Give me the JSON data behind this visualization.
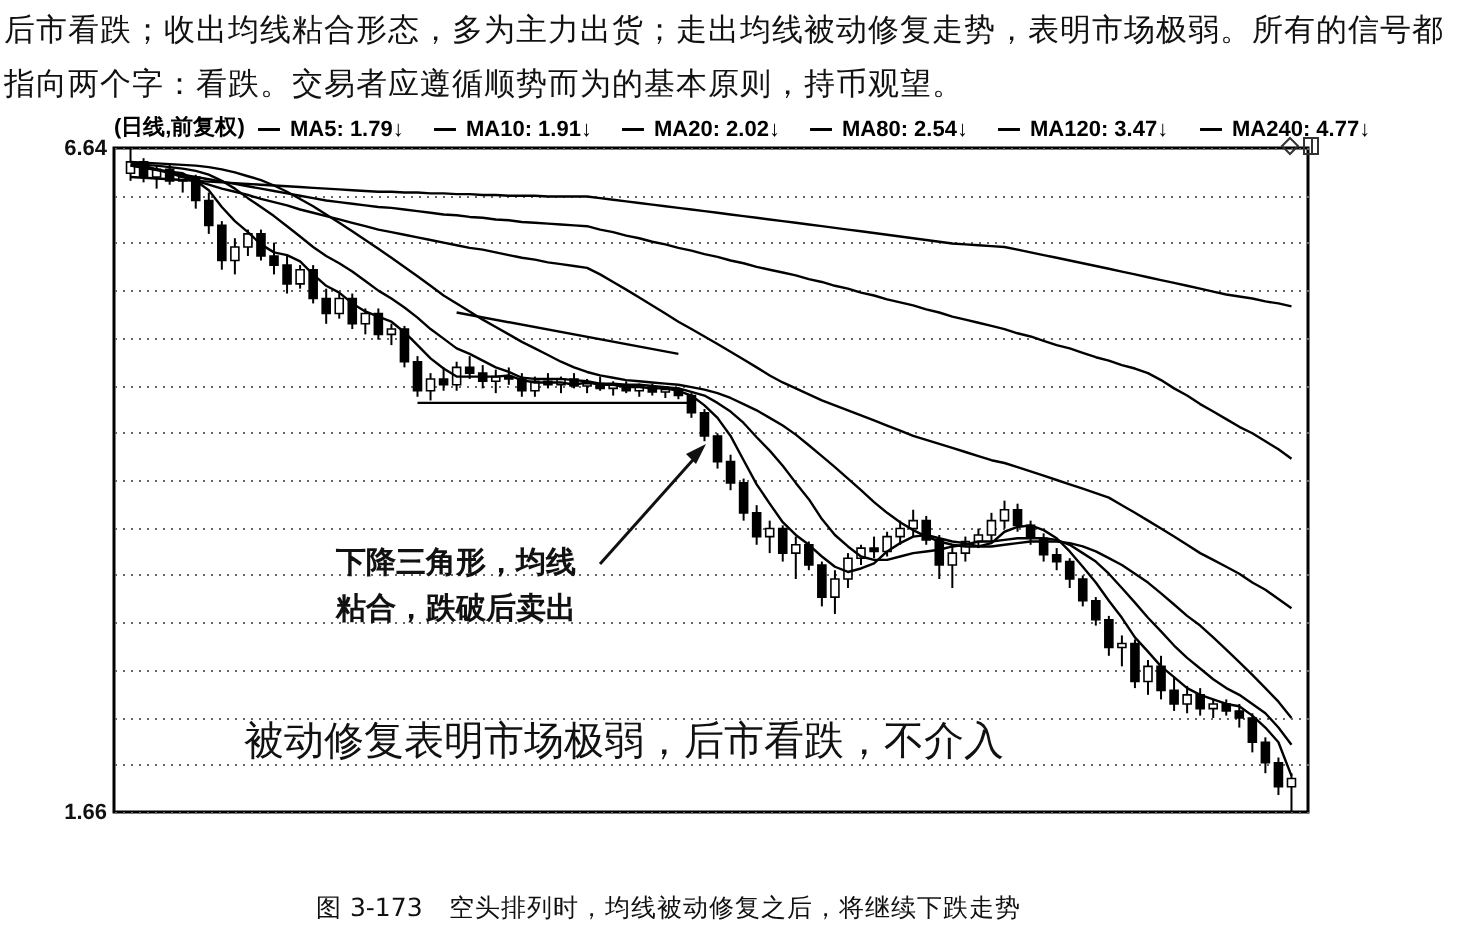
{
  "chart_data": {
    "type": "candlestick",
    "subtitle": "后市看跌；收出均线粘合形态，多为主力出货；走出均线被动修复走势，表明市场极弱。所有的信号都指向两个字：看跌。交易者应遵循顺势而为的基本原则，持币观望。",
    "annotations": [
      "下降三角形，均线粘合，跌破后卖出",
      "被动修复表明市场极弱，后市看跌，不介入",
      "图 3-173　空头排列时，均线被动修复之后，将继续下跌走势"
    ],
    "legend_title": "(日线,前复权)",
    "legend": "top",
    "log": true,
    "ylim": [
      1.66,
      6.64
    ],
    "yticks": [
      1.66,
      6.64
    ],
    "grid": "y",
    "tick_labels": "y",
    "categories": [
      null,
      null,
      null,
      null,
      null,
      null,
      null,
      null,
      null,
      null,
      null,
      null,
      null,
      null,
      null,
      null,
      null,
      null,
      null,
      null,
      null,
      null,
      null,
      null,
      null,
      null,
      null,
      null,
      null,
      null,
      null,
      null,
      null,
      null,
      null,
      null,
      null,
      null,
      null,
      null,
      null,
      null,
      null,
      null,
      null,
      null,
      null,
      null,
      null,
      null,
      null,
      null,
      null,
      null,
      null,
      null,
      null,
      null,
      null,
      null,
      null,
      null,
      null,
      null,
      null,
      null,
      null,
      null,
      null,
      null,
      null,
      null,
      null,
      null,
      null,
      null,
      null,
      null,
      null,
      null,
      null,
      null,
      null,
      null,
      null,
      null,
      null,
      null,
      null,
      null
    ],
    "ohlc": [
      [
        6.3,
        6.64,
        6.2,
        6.45
      ],
      [
        6.45,
        6.5,
        6.18,
        6.25
      ],
      [
        6.25,
        6.4,
        6.1,
        6.35
      ],
      [
        6.35,
        6.42,
        6.15,
        6.2
      ],
      [
        6.2,
        6.3,
        6.05,
        6.25
      ],
      [
        6.25,
        6.28,
        5.85,
        5.95
      ],
      [
        5.95,
        6.05,
        5.55,
        5.65
      ],
      [
        5.65,
        5.7,
        5.15,
        5.25
      ],
      [
        5.25,
        5.5,
        5.1,
        5.4
      ],
      [
        5.4,
        5.6,
        5.3,
        5.55
      ],
      [
        5.55,
        5.6,
        5.25,
        5.3
      ],
      [
        5.3,
        5.45,
        5.1,
        5.2
      ],
      [
        5.2,
        5.3,
        4.9,
        5.0
      ],
      [
        5.0,
        5.2,
        4.95,
        5.15
      ],
      [
        5.15,
        5.2,
        4.8,
        4.85
      ],
      [
        4.85,
        4.95,
        4.6,
        4.7
      ],
      [
        4.7,
        4.9,
        4.65,
        4.85
      ],
      [
        4.85,
        4.9,
        4.55,
        4.6
      ],
      [
        4.6,
        4.75,
        4.5,
        4.7
      ],
      [
        4.7,
        4.75,
        4.45,
        4.5
      ],
      [
        4.5,
        4.6,
        4.4,
        4.55
      ],
      [
        4.55,
        4.58,
        4.2,
        4.25
      ],
      [
        4.25,
        4.3,
        3.95,
        4.0
      ],
      [
        4.0,
        4.15,
        3.92,
        4.1
      ],
      [
        4.1,
        4.2,
        4.0,
        4.05
      ],
      [
        4.05,
        4.25,
        4.0,
        4.2
      ],
      [
        4.2,
        4.3,
        4.1,
        4.15
      ],
      [
        4.15,
        4.22,
        4.02,
        4.08
      ],
      [
        4.08,
        4.18,
        3.98,
        4.12
      ],
      [
        4.12,
        4.2,
        4.05,
        4.1
      ],
      [
        4.1,
        4.15,
        3.95,
        4.0
      ],
      [
        4.0,
        4.12,
        3.95,
        4.08
      ],
      [
        4.08,
        4.15,
        4.02,
        4.05
      ],
      [
        4.05,
        4.12,
        3.98,
        4.1
      ],
      [
        4.1,
        4.15,
        4.02,
        4.04
      ],
      [
        4.04,
        4.1,
        3.98,
        4.06
      ],
      [
        4.06,
        4.12,
        4.0,
        4.02
      ],
      [
        4.02,
        4.08,
        3.96,
        4.05
      ],
      [
        4.05,
        4.08,
        3.98,
        4.0
      ],
      [
        4.0,
        4.06,
        3.95,
        4.03
      ],
      [
        4.03,
        4.06,
        3.96,
        3.99
      ],
      [
        3.99,
        4.04,
        3.94,
        4.01
      ],
      [
        4.01,
        4.03,
        3.93,
        3.96
      ],
      [
        3.96,
        3.98,
        3.78,
        3.82
      ],
      [
        3.82,
        3.85,
        3.6,
        3.64
      ],
      [
        3.64,
        3.66,
        3.4,
        3.45
      ],
      [
        3.45,
        3.5,
        3.25,
        3.3
      ],
      [
        3.3,
        3.33,
        3.05,
        3.1
      ],
      [
        3.1,
        3.15,
        2.9,
        2.95
      ],
      [
        2.95,
        3.05,
        2.85,
        3.0
      ],
      [
        3.0,
        3.02,
        2.8,
        2.85
      ],
      [
        2.85,
        2.95,
        2.7,
        2.9
      ],
      [
        2.9,
        2.92,
        2.75,
        2.78
      ],
      [
        2.78,
        2.8,
        2.55,
        2.6
      ],
      [
        2.6,
        2.75,
        2.51,
        2.7
      ],
      [
        2.7,
        2.85,
        2.65,
        2.82
      ],
      [
        2.82,
        2.9,
        2.78,
        2.88
      ],
      [
        2.88,
        2.95,
        2.82,
        2.86
      ],
      [
        2.86,
        2.98,
        2.83,
        2.95
      ],
      [
        2.95,
        3.05,
        2.9,
        3.0
      ],
      [
        3.0,
        3.12,
        2.95,
        3.05
      ],
      [
        3.05,
        3.08,
        2.9,
        2.93
      ],
      [
        2.93,
        2.96,
        2.7,
        2.78
      ],
      [
        2.78,
        2.9,
        2.65,
        2.85
      ],
      [
        2.85,
        2.95,
        2.8,
        2.92
      ],
      [
        2.92,
        3.0,
        2.88,
        2.96
      ],
      [
        2.96,
        3.1,
        2.92,
        3.05
      ],
      [
        3.05,
        3.18,
        3.0,
        3.12
      ],
      [
        3.12,
        3.16,
        2.98,
        3.02
      ],
      [
        3.02,
        3.05,
        2.9,
        2.94
      ],
      [
        2.94,
        2.97,
        2.8,
        2.84
      ],
      [
        2.84,
        2.88,
        2.75,
        2.8
      ],
      [
        2.8,
        2.82,
        2.65,
        2.7
      ],
      [
        2.7,
        2.72,
        2.55,
        2.58
      ],
      [
        2.58,
        2.6,
        2.45,
        2.48
      ],
      [
        2.48,
        2.5,
        2.3,
        2.34
      ],
      [
        2.34,
        2.4,
        2.25,
        2.36
      ],
      [
        2.36,
        2.38,
        2.15,
        2.18
      ],
      [
        2.18,
        2.28,
        2.12,
        2.25
      ],
      [
        2.25,
        2.3,
        2.1,
        2.14
      ],
      [
        2.14,
        2.2,
        2.05,
        2.08
      ],
      [
        2.08,
        2.16,
        2.04,
        2.12
      ],
      [
        2.12,
        2.15,
        2.03,
        2.06
      ],
      [
        2.06,
        2.1,
        2.02,
        2.08
      ],
      [
        2.08,
        2.1,
        2.03,
        2.05
      ],
      [
        2.05,
        2.08,
        1.98,
        2.02
      ],
      [
        2.02,
        2.04,
        1.88,
        1.92
      ],
      [
        1.92,
        1.94,
        1.8,
        1.84
      ],
      [
        1.84,
        1.86,
        1.72,
        1.75
      ],
      [
        1.75,
        1.8,
        1.66,
        1.78
      ]
    ],
    "series": [
      {
        "type": "line",
        "name": "MA5: 1.79↓",
        "color": "#000000",
        "values": [
          6.4,
          6.38,
          6.35,
          6.32,
          6.3,
          6.2,
          6.08,
          5.87,
          5.7,
          5.57,
          5.43,
          5.34,
          5.31,
          5.24,
          5.1,
          4.98,
          4.91,
          4.8,
          4.72,
          4.67,
          4.62,
          4.52,
          4.4,
          4.28,
          4.19,
          4.12,
          4.12,
          4.12,
          4.12,
          4.13,
          4.09,
          4.07,
          4.07,
          4.07,
          4.05,
          4.07,
          4.05,
          4.05,
          4.03,
          4.03,
          4.02,
          4.02,
          4.0,
          3.96,
          3.88,
          3.78,
          3.64,
          3.46,
          3.29,
          3.16,
          3.04,
          2.96,
          2.9,
          2.83,
          2.77,
          2.74,
          2.76,
          2.79,
          2.86,
          2.91,
          2.95,
          2.96,
          2.94,
          2.92,
          2.91,
          2.89,
          2.91,
          2.98,
          3.01,
          3.02,
          2.99,
          2.94,
          2.86,
          2.77,
          2.68,
          2.58,
          2.49,
          2.39,
          2.32,
          2.25,
          2.2,
          2.15,
          2.12,
          2.1,
          2.08,
          2.07,
          2.03,
          1.98,
          1.92,
          1.79
        ]
      },
      {
        "type": "line",
        "name": "MA10: 1.91↓",
        "color": "#000000",
        "values": [
          6.42,
          6.41,
          6.4,
          6.38,
          6.36,
          6.33,
          6.28,
          6.2,
          6.1,
          5.98,
          5.87,
          5.76,
          5.64,
          5.52,
          5.4,
          5.3,
          5.22,
          5.13,
          5.03,
          4.93,
          4.85,
          4.76,
          4.66,
          4.55,
          4.46,
          4.37,
          4.32,
          4.26,
          4.2,
          4.16,
          4.11,
          4.1,
          4.1,
          4.1,
          4.09,
          4.08,
          4.06,
          4.06,
          4.05,
          4.05,
          4.04,
          4.03,
          4.02,
          3.99,
          3.96,
          3.9,
          3.83,
          3.74,
          3.63,
          3.53,
          3.42,
          3.3,
          3.19,
          3.06,
          2.96,
          2.89,
          2.83,
          2.81,
          2.81,
          2.83,
          2.85,
          2.86,
          2.87,
          2.89,
          2.9,
          2.92,
          2.92,
          2.93,
          2.94,
          2.94,
          2.94,
          2.93,
          2.9,
          2.85,
          2.8,
          2.73,
          2.65,
          2.57,
          2.49,
          2.42,
          2.35,
          2.29,
          2.24,
          2.19,
          2.15,
          2.12,
          2.08,
          2.04,
          1.98,
          1.91
        ]
      },
      {
        "type": "line",
        "name": "MA20: 2.02↓",
        "color": "#000000",
        "values": [
          6.45,
          6.44,
          6.43,
          6.42,
          6.41,
          6.4,
          6.38,
          6.35,
          6.31,
          6.26,
          6.21,
          6.14,
          6.06,
          5.97,
          5.88,
          5.78,
          5.68,
          5.58,
          5.48,
          5.38,
          5.28,
          5.18,
          5.08,
          4.98,
          4.88,
          4.8,
          4.72,
          4.64,
          4.57,
          4.5,
          4.43,
          4.37,
          4.31,
          4.25,
          4.2,
          4.16,
          4.13,
          4.11,
          4.09,
          4.08,
          4.07,
          4.06,
          4.05,
          4.03,
          4.01,
          3.98,
          3.94,
          3.89,
          3.84,
          3.78,
          3.72,
          3.65,
          3.57,
          3.49,
          3.41,
          3.33,
          3.25,
          3.17,
          3.1,
          3.04,
          2.99,
          2.95,
          2.92,
          2.9,
          2.89,
          2.89,
          2.89,
          2.9,
          2.91,
          2.92,
          2.92,
          2.92,
          2.91,
          2.89,
          2.86,
          2.82,
          2.78,
          2.73,
          2.68,
          2.62,
          2.56,
          2.5,
          2.45,
          2.39,
          2.33,
          2.27,
          2.21,
          2.15,
          2.09,
          2.02
        ]
      },
      {
        "type": "line",
        "name": "MA80: 2.54↓",
        "color": "#000000",
        "values": [
          6.45,
          6.4,
          6.35,
          6.3,
          6.25,
          6.2,
          6.15,
          6.1,
          6.06,
          6.02,
          5.97,
          5.93,
          5.89,
          5.84,
          5.8,
          5.76,
          5.72,
          5.68,
          5.64,
          5.6,
          5.57,
          5.54,
          5.51,
          5.48,
          5.45,
          5.42,
          5.39,
          5.37,
          5.34,
          5.31,
          5.28,
          5.26,
          5.23,
          5.21,
          5.19,
          5.17,
          5.1,
          5.02,
          4.94,
          4.86,
          4.78,
          4.7,
          4.62,
          4.55,
          4.48,
          4.41,
          4.34,
          4.27,
          4.2,
          4.13,
          4.07,
          4.02,
          3.97,
          3.92,
          3.88,
          3.84,
          3.8,
          3.76,
          3.72,
          3.68,
          3.64,
          3.61,
          3.58,
          3.55,
          3.52,
          3.49,
          3.46,
          3.44,
          3.41,
          3.38,
          3.35,
          3.32,
          3.29,
          3.26,
          3.23,
          3.2,
          3.15,
          3.1,
          3.05,
          3.0,
          2.95,
          2.9,
          2.85,
          2.81,
          2.77,
          2.73,
          2.68,
          2.64,
          2.59,
          2.54
        ]
      },
      {
        "type": "line",
        "name": "MA120: 3.47↓",
        "color": "#000000",
        "values": [
          6.4,
          6.37,
          6.34,
          6.31,
          6.28,
          6.25,
          6.22,
          6.19,
          6.16,
          6.13,
          6.1,
          6.07,
          6.04,
          6.01,
          5.98,
          5.95,
          5.93,
          5.91,
          5.89,
          5.87,
          5.86,
          5.84,
          5.82,
          5.8,
          5.78,
          5.77,
          5.75,
          5.74,
          5.72,
          5.71,
          5.69,
          5.68,
          5.67,
          5.66,
          5.65,
          5.64,
          5.6,
          5.57,
          5.53,
          5.5,
          5.46,
          5.43,
          5.39,
          5.36,
          5.32,
          5.29,
          5.25,
          5.22,
          5.18,
          5.15,
          5.12,
          5.09,
          5.05,
          5.02,
          4.98,
          4.95,
          4.91,
          4.88,
          4.84,
          4.81,
          4.78,
          4.74,
          4.71,
          4.67,
          4.64,
          4.61,
          4.58,
          4.55,
          4.51,
          4.48,
          4.44,
          4.4,
          4.37,
          4.33,
          4.29,
          4.26,
          4.22,
          4.19,
          4.15,
          4.09,
          4.02,
          3.96,
          3.89,
          3.83,
          3.77,
          3.71,
          3.66,
          3.6,
          3.54,
          3.47
        ]
      },
      {
        "type": "line",
        "name": "MA240: 4.77↓",
        "color": "#000000",
        "values": [
          6.25,
          6.24,
          6.23,
          6.22,
          6.21,
          6.2,
          6.19,
          6.18,
          6.17,
          6.16,
          6.15,
          6.14,
          6.13,
          6.12,
          6.11,
          6.1,
          6.09,
          6.08,
          6.07,
          6.06,
          6.06,
          6.05,
          6.05,
          6.04,
          6.04,
          6.03,
          6.03,
          6.02,
          6.02,
          6.01,
          6.01,
          6.01,
          6.0,
          6.0,
          6.0,
          6.0,
          5.98,
          5.96,
          5.94,
          5.92,
          5.9,
          5.88,
          5.86,
          5.84,
          5.82,
          5.8,
          5.78,
          5.76,
          5.74,
          5.72,
          5.7,
          5.68,
          5.66,
          5.64,
          5.62,
          5.6,
          5.58,
          5.56,
          5.54,
          5.52,
          5.5,
          5.48,
          5.46,
          5.44,
          5.43,
          5.42,
          5.41,
          5.4,
          5.37,
          5.34,
          5.31,
          5.28,
          5.25,
          5.22,
          5.19,
          5.16,
          5.13,
          5.1,
          5.07,
          5.04,
          5.01,
          4.98,
          4.95,
          4.92,
          4.89,
          4.87,
          4.85,
          4.82,
          4.8,
          4.77
        ]
      },
      {
        "type": "line",
        "color": "#000000",
        "values": [
          null,
          null,
          null,
          null,
          null,
          null,
          null,
          null,
          null,
          null,
          null,
          null,
          null,
          null,
          null,
          null,
          null,
          null,
          null,
          null,
          null,
          null,
          3.9,
          null,
          null,
          null,
          null,
          null,
          null,
          null,
          null,
          null,
          null,
          null,
          null,
          null,
          null,
          null,
          null,
          null,
          null,
          null,
          null,
          3.9,
          null,
          null,
          null,
          null,
          null,
          null,
          null,
          null,
          null,
          null,
          null,
          null,
          null,
          null,
          null,
          null,
          null,
          null,
          null,
          null,
          null,
          null,
          null,
          null,
          null,
          null,
          null,
          null,
          null,
          null,
          null,
          null,
          null,
          null,
          null,
          null,
          null,
          null,
          null,
          null,
          null,
          null,
          null,
          null,
          null,
          null
        ]
      },
      {
        "type": "line",
        "color": "#000000",
        "values": [
          null,
          null,
          null,
          null,
          null,
          null,
          null,
          null,
          null,
          null,
          null,
          null,
          null,
          null,
          null,
          null,
          null,
          null,
          null,
          null,
          null,
          null,
          null,
          null,
          null,
          4.71,
          null,
          null,
          null,
          null,
          null,
          null,
          null,
          null,
          null,
          null,
          null,
          null,
          null,
          null,
          null,
          null,
          4.32,
          null,
          null,
          null,
          null,
          null,
          null,
          null,
          null,
          null,
          null,
          null,
          null,
          null,
          null,
          null,
          null,
          null,
          null,
          null,
          null,
          null,
          null,
          null,
          null,
          null,
          null,
          null,
          null,
          null,
          null,
          null,
          null,
          null,
          null,
          null,
          null,
          null,
          null,
          null,
          null,
          null,
          null,
          null,
          null,
          null,
          null,
          null
        ]
      }
    ]
  }
}
